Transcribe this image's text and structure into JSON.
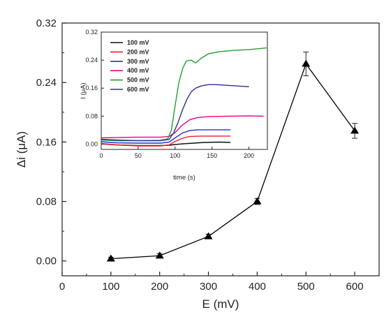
{
  "chart_data": [
    {
      "type": "scatter",
      "xlabel": "E (mV)",
      "ylabel": "Δi (μA)",
      "xlim": [
        0,
        650
      ],
      "ylim": [
        -0.02,
        0.32
      ],
      "xticks": [
        "0",
        "100",
        "200",
        "300",
        "400",
        "500",
        "600"
      ],
      "yticks": [
        "0.00",
        "0.08",
        "0.16",
        "0.24",
        "0.32"
      ],
      "marker": "triangle",
      "line": "connected",
      "color": "#000000",
      "x": [
        100,
        200,
        300,
        400,
        500,
        600
      ],
      "y": [
        0.003,
        0.007,
        0.033,
        0.08,
        0.265,
        0.175
      ],
      "error": [
        0.002,
        0.003,
        0.003,
        0.004,
        0.016,
        0.01
      ]
    },
    {
      "type": "line",
      "xlabel": "time (s)",
      "ylabel": "I (μA)",
      "xlim": [
        0,
        225
      ],
      "ylim": [
        -0.015,
        0.32
      ],
      "xticks": [
        "0",
        "50",
        "100",
        "150",
        "200"
      ],
      "yticks": [
        "0.00",
        "0.08",
        "0.16",
        "0.24",
        "0.32"
      ],
      "legend_position": "top-left",
      "series": [
        {
          "name": "100 mV",
          "color": "#111111",
          "x": [
            0,
            20,
            50,
            80,
            92,
            100,
            110,
            125,
            140,
            160,
            175
          ],
          "y": [
            0.001,
            -0.002,
            -0.004,
            -0.004,
            -0.003,
            -0.001,
            0.001,
            0.003,
            0.005,
            0.006,
            0.005
          ]
        },
        {
          "name": "200 mV",
          "color": "#ee1c24",
          "x": [
            0,
            20,
            50,
            80,
            92,
            100,
            110,
            120,
            135,
            150,
            175
          ],
          "y": [
            0.002,
            -0.002,
            -0.005,
            -0.005,
            -0.002,
            0.008,
            0.017,
            0.022,
            0.023,
            0.023,
            0.023
          ]
        },
        {
          "name": "300 mV",
          "color": "#2233cc",
          "x": [
            0,
            20,
            50,
            80,
            92,
            100,
            110,
            120,
            130,
            150,
            175
          ],
          "y": [
            0.007,
            0.004,
            0.003,
            0.003,
            0.006,
            0.018,
            0.032,
            0.039,
            0.041,
            0.041,
            0.041
          ]
        },
        {
          "name": "400 mV",
          "color": "#ec008c",
          "x": [
            0,
            20,
            50,
            80,
            92,
            100,
            110,
            120,
            130,
            145,
            170,
            200,
            220
          ],
          "y": [
            0.018,
            0.019,
            0.02,
            0.02,
            0.022,
            0.033,
            0.055,
            0.07,
            0.076,
            0.079,
            0.08,
            0.081,
            0.08
          ]
        },
        {
          "name": "500 mV",
          "color": "#1fa22e",
          "x": [
            0,
            20,
            50,
            80,
            90,
            95,
            100,
            105,
            110,
            115,
            122,
            128,
            135,
            145,
            160,
            180,
            200,
            224
          ],
          "y": [
            0.012,
            0.01,
            0.01,
            0.011,
            0.015,
            0.04,
            0.11,
            0.175,
            0.215,
            0.237,
            0.24,
            0.232,
            0.245,
            0.258,
            0.264,
            0.268,
            0.27,
            0.275
          ]
        },
        {
          "name": "600 mV",
          "color": "#2e3192",
          "x": [
            0,
            20,
            50,
            80,
            92,
            98,
            104,
            110,
            116,
            122,
            128,
            135,
            145,
            155,
            170,
            200
          ],
          "y": [
            0.014,
            0.012,
            0.01,
            0.01,
            0.014,
            0.032,
            0.062,
            0.098,
            0.128,
            0.15,
            0.16,
            0.166,
            0.17,
            0.17,
            0.168,
            0.164
          ]
        }
      ]
    }
  ]
}
